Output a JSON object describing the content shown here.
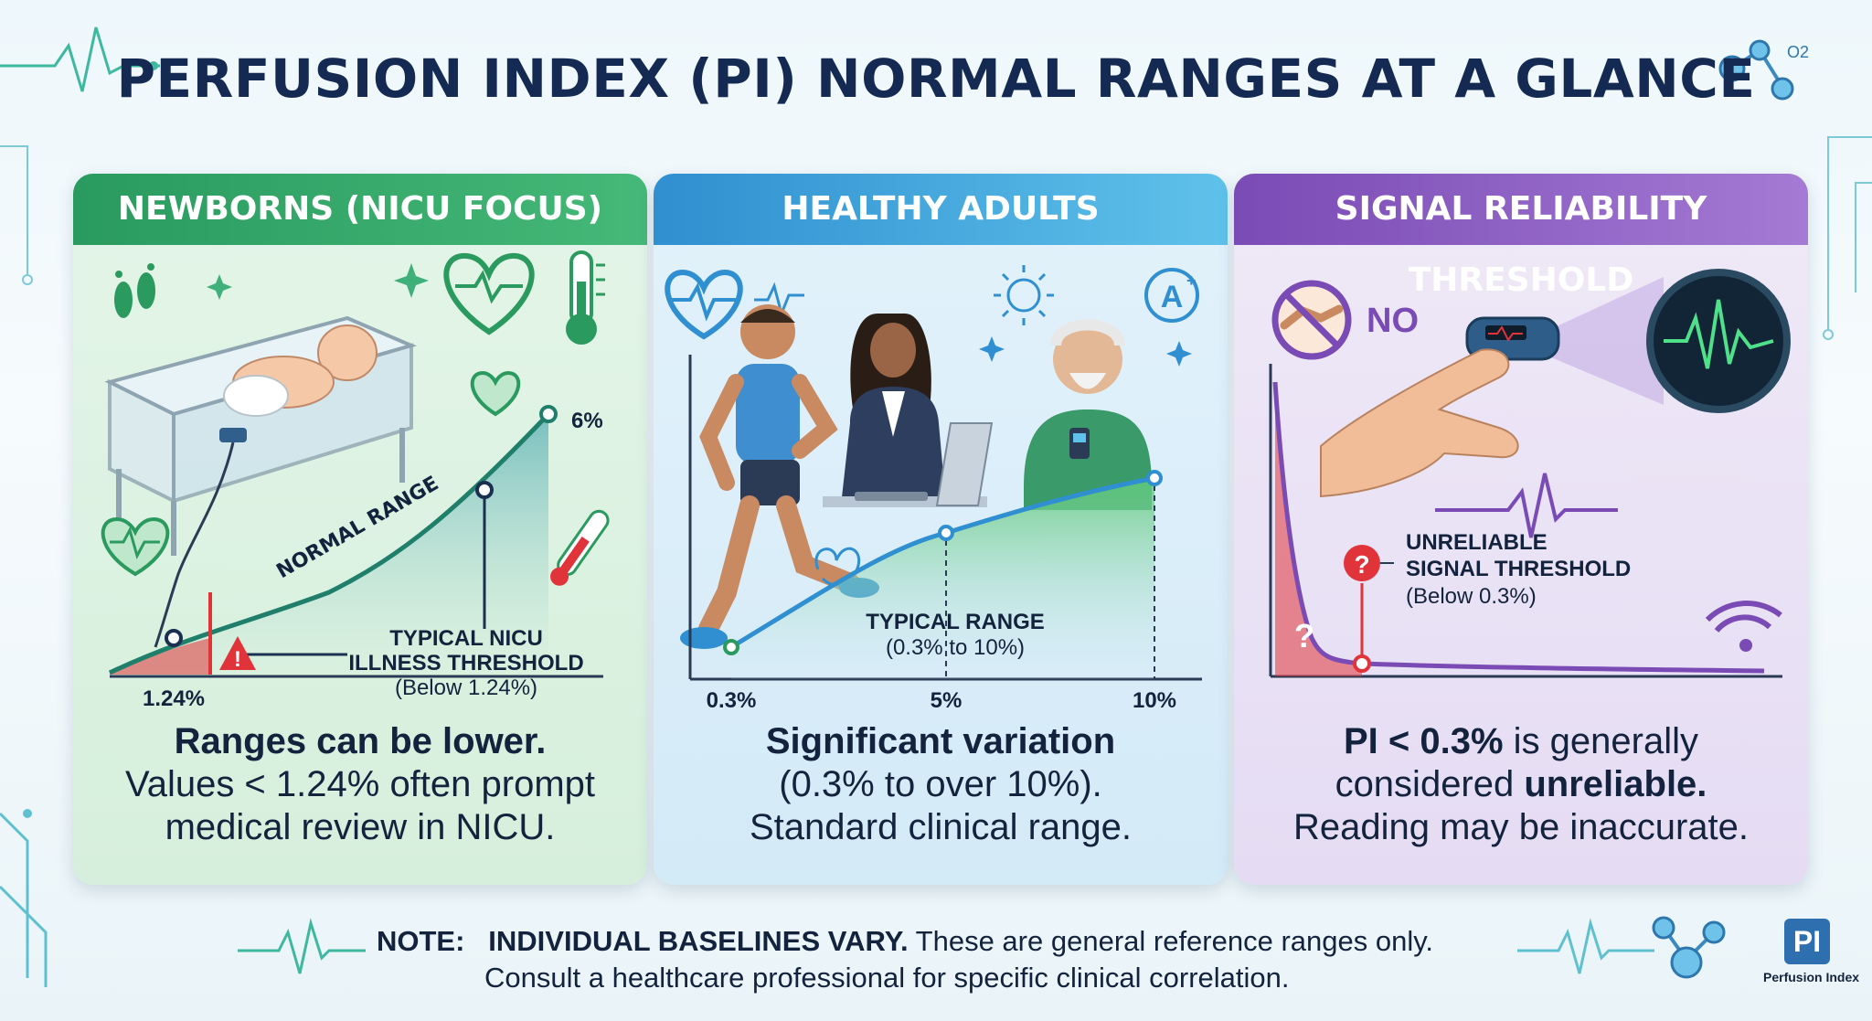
{
  "title": "PERFUSION INDEX (PI) NORMAL RANGES AT A GLANCE",
  "colors": {
    "green": "#2a9a5f",
    "blue": "#2f8fd0",
    "purple": "#7a4bb5",
    "red": "#e0343a",
    "navy": "#142a52"
  },
  "panels": [
    {
      "heading": "NEWBORNS (NICU FOCUS)",
      "icons": [
        "footprints-icon",
        "heart-pulse-icon",
        "thermometer-icon",
        "incubator-icon",
        "warning-icon"
      ],
      "curve_label": "NORMAL RANGE",
      "top_value": "6%",
      "threshold_title_1": "TYPICAL NICU",
      "threshold_title_2": "ILLNESS THRESHOLD",
      "threshold_note": "(Below 1.24%)",
      "axis_value": "1.24%",
      "text_bold": "Ranges can be lower.",
      "text_line_2": "Values < 1.24% often prompt",
      "text_line_3": "medical review in NICU."
    },
    {
      "heading": "HEALTHY ADULTS",
      "icons": [
        "heart-pulse-icon",
        "sun-icon",
        "a-plus-icon",
        "runner-icon",
        "office-worker-icon",
        "senior-icon"
      ],
      "range_title": "TYPICAL RANGE",
      "range_note": "(0.3% to 10%)",
      "ticks": [
        "0.3%",
        "5%",
        "10%"
      ],
      "text_bold": "Significant variation",
      "text_line_2": "(0.3% to over 10%).",
      "text_line_3": "Standard clinical range."
    },
    {
      "heading": "SIGNAL RELIABILITY THRESHOLD",
      "icons": [
        "no-handshake-icon",
        "pulse-oximeter-icon",
        "waveform-monitor-icon",
        "wifi-icon",
        "question-icon"
      ],
      "no_label": "NO",
      "threshold_title_1": "UNRELIABLE",
      "threshold_title_2": "SIGNAL THRESHOLD",
      "threshold_note": "(Below 0.3%)",
      "text_bold_1": "PI < 0.3%",
      "text_line_1_rest": " is generally",
      "text_line_2_lead": "considered ",
      "text_bold_2": "unreliable.",
      "text_line_3": "Reading may be inaccurate."
    }
  ],
  "note": {
    "label": "NOTE:",
    "bold": "INDIVIDUAL BASELINES VARY.",
    "rest": " These are general reference ranges only.",
    "line_2": "Consult a healthcare professional for specific clinical correlation."
  },
  "logo": {
    "mark": "PI",
    "caption": "Perfusion Index"
  },
  "o2_label": "O2"
}
